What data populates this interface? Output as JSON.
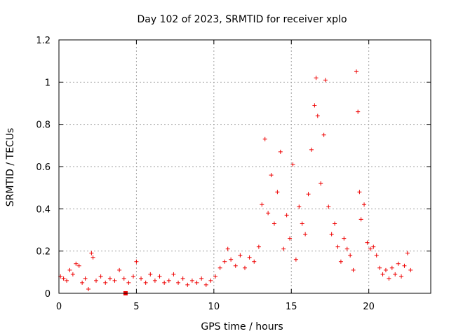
{
  "chart_data": {
    "type": "scatter",
    "title": "Day 102 of 2023, SRMTID for receiver xplo",
    "xlabel": "GPS time / hours",
    "ylabel": "SRMTID / TECUs",
    "xlim": [
      0,
      24
    ],
    "ylim": [
      0,
      1.2
    ],
    "x_ticks": [
      0,
      5,
      10,
      15,
      20
    ],
    "x_tick_labels": [
      "0",
      "5",
      "10",
      "15",
      "20"
    ],
    "y_ticks": [
      0,
      0.2,
      0.4,
      0.6,
      0.8,
      1,
      1.2
    ],
    "y_tick_labels": [
      "0",
      "0.2",
      "0.4",
      "0.6",
      "0.8",
      "1",
      "1.2"
    ],
    "grid": true,
    "marker": "plus",
    "color": "#ee0000",
    "series": [
      {
        "name": "SRMTID",
        "points": [
          [
            0.1,
            0.08
          ],
          [
            0.3,
            0.07
          ],
          [
            0.5,
            0.06
          ],
          [
            0.7,
            0.11
          ],
          [
            0.9,
            0.09
          ],
          [
            1.1,
            0.14
          ],
          [
            1.3,
            0.13
          ],
          [
            1.5,
            0.05
          ],
          [
            1.7,
            0.07
          ],
          [
            1.9,
            0.02
          ],
          [
            2.1,
            0.19
          ],
          [
            2.2,
            0.17
          ],
          [
            2.4,
            0.06
          ],
          [
            2.7,
            0.08
          ],
          [
            3.0,
            0.05
          ],
          [
            3.3,
            0.07
          ],
          [
            3.6,
            0.06
          ],
          [
            3.9,
            0.11
          ],
          [
            4.2,
            0.07
          ],
          [
            4.5,
            0.05
          ],
          [
            4.8,
            0.08
          ],
          [
            5.0,
            0.15
          ],
          [
            5.3,
            0.07
          ],
          [
            5.6,
            0.05
          ],
          [
            5.9,
            0.09
          ],
          [
            6.2,
            0.06
          ],
          [
            6.5,
            0.08
          ],
          [
            6.8,
            0.05
          ],
          [
            7.1,
            0.06
          ],
          [
            7.4,
            0.09
          ],
          [
            7.7,
            0.05
          ],
          [
            8.0,
            0.07
          ],
          [
            8.3,
            0.04
          ],
          [
            8.6,
            0.06
          ],
          [
            8.9,
            0.05
          ],
          [
            9.2,
            0.07
          ],
          [
            9.5,
            0.04
          ],
          [
            9.8,
            0.06
          ],
          [
            10.1,
            0.08
          ],
          [
            10.4,
            0.12
          ],
          [
            10.7,
            0.15
          ],
          [
            10.9,
            0.21
          ],
          [
            11.1,
            0.16
          ],
          [
            11.4,
            0.13
          ],
          [
            11.7,
            0.18
          ],
          [
            12.0,
            0.12
          ],
          [
            12.3,
            0.17
          ],
          [
            12.6,
            0.15
          ],
          [
            12.9,
            0.22
          ],
          [
            13.1,
            0.42
          ],
          [
            13.3,
            0.73
          ],
          [
            13.5,
            0.38
          ],
          [
            13.7,
            0.56
          ],
          [
            13.9,
            0.33
          ],
          [
            14.1,
            0.48
          ],
          [
            14.3,
            0.67
          ],
          [
            14.5,
            0.21
          ],
          [
            14.7,
            0.37
          ],
          [
            14.9,
            0.26
          ],
          [
            15.1,
            0.61
          ],
          [
            15.3,
            0.16
          ],
          [
            15.5,
            0.41
          ],
          [
            15.7,
            0.33
          ],
          [
            15.9,
            0.28
          ],
          [
            16.1,
            0.47
          ],
          [
            16.3,
            0.68
          ],
          [
            16.5,
            0.89
          ],
          [
            16.6,
            1.02
          ],
          [
            16.7,
            0.84
          ],
          [
            16.9,
            0.52
          ],
          [
            17.1,
            0.75
          ],
          [
            17.2,
            1.01
          ],
          [
            17.4,
            0.41
          ],
          [
            17.6,
            0.28
          ],
          [
            17.8,
            0.33
          ],
          [
            18.0,
            0.22
          ],
          [
            18.2,
            0.15
          ],
          [
            18.4,
            0.26
          ],
          [
            18.6,
            0.21
          ],
          [
            18.8,
            0.18
          ],
          [
            19.0,
            0.11
          ],
          [
            19.2,
            1.05
          ],
          [
            19.3,
            0.86
          ],
          [
            19.4,
            0.48
          ],
          [
            19.5,
            0.35
          ],
          [
            19.7,
            0.42
          ],
          [
            19.9,
            0.24
          ],
          [
            20.1,
            0.21
          ],
          [
            20.3,
            0.22
          ],
          [
            20.5,
            0.18
          ],
          [
            20.7,
            0.12
          ],
          [
            20.9,
            0.09
          ],
          [
            21.1,
            0.11
          ],
          [
            21.3,
            0.07
          ],
          [
            21.5,
            0.12
          ],
          [
            21.7,
            0.09
          ],
          [
            21.9,
            0.14
          ],
          [
            22.1,
            0.08
          ],
          [
            22.3,
            0.13
          ],
          [
            22.5,
            0.19
          ],
          [
            22.7,
            0.11
          ]
        ]
      }
    ],
    "outlier_square": [
      4.3,
      0.0
    ]
  }
}
